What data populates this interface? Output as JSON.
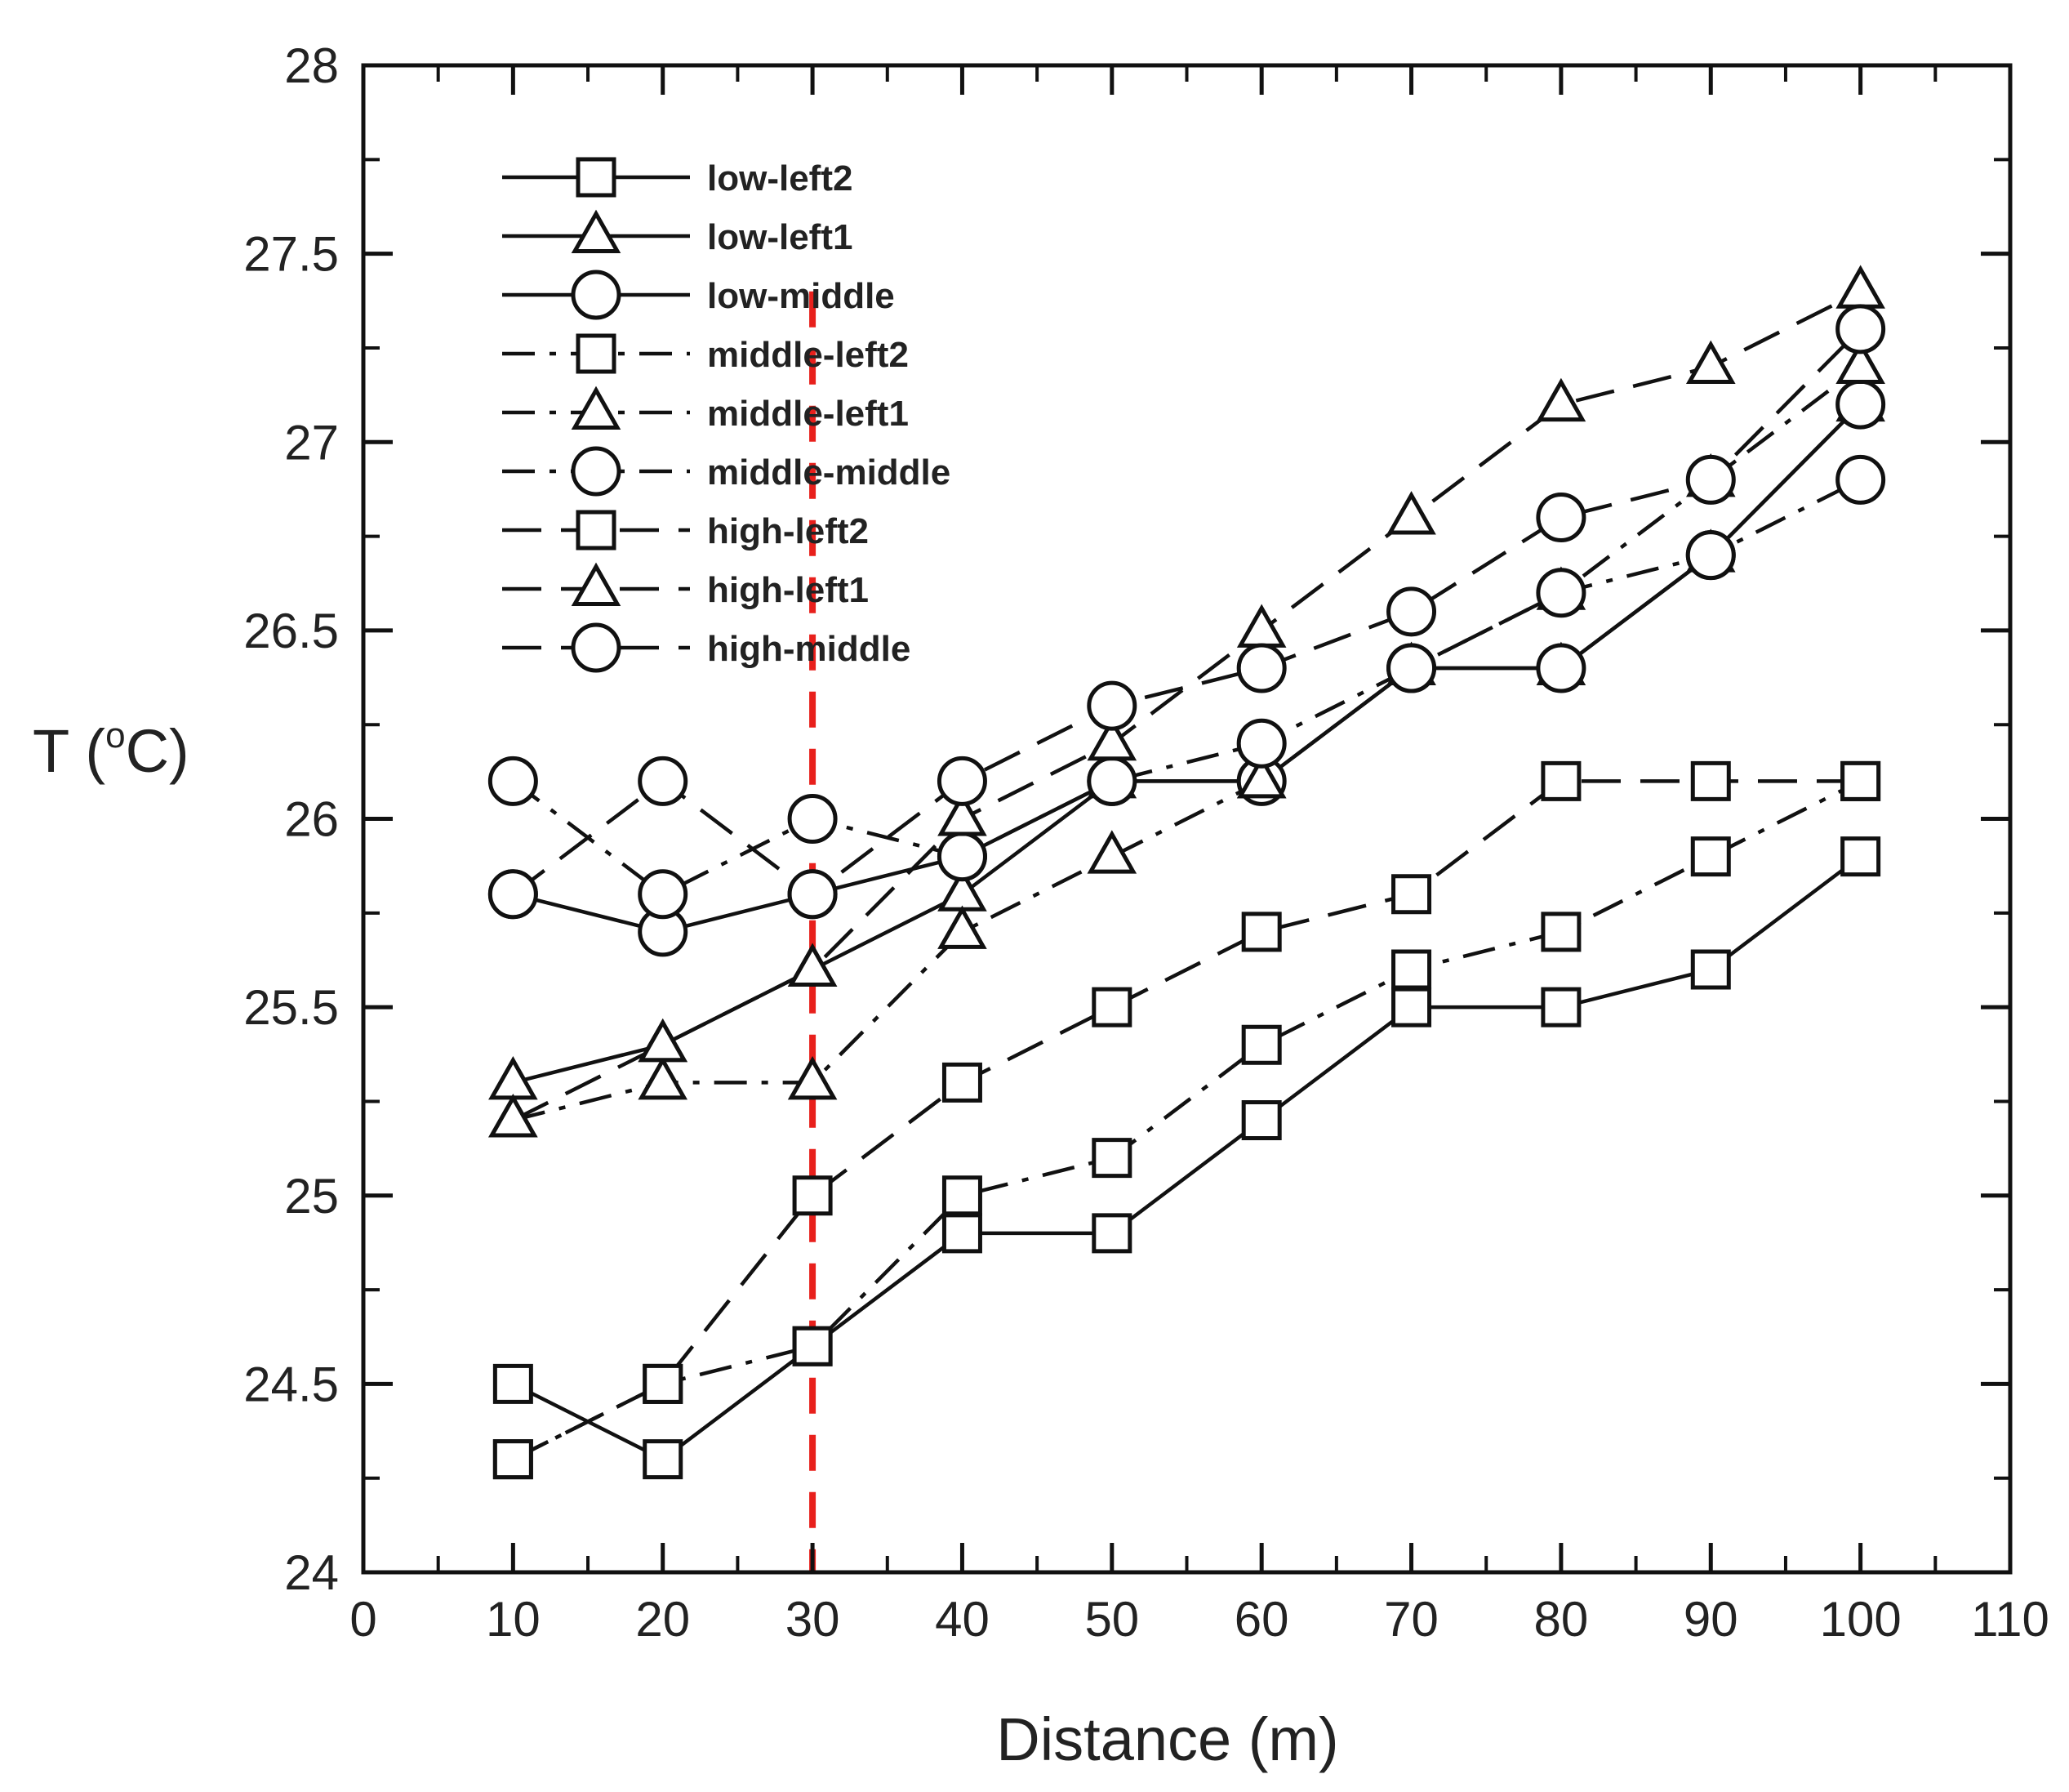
{
  "chart_data": {
    "type": "line",
    "title": "",
    "xlabel": "Distance (m)",
    "ylabel_parts": {
      "main": "T (",
      "superscript": "o",
      "tail": "C)"
    },
    "xlim": [
      0,
      110
    ],
    "ylim": [
      24,
      28
    ],
    "x_ticks": [
      "0",
      "10",
      "20",
      "30",
      "40",
      "50",
      "60",
      "70",
      "80",
      "90",
      "100",
      "110"
    ],
    "y_ticks": [
      "24",
      "24.5",
      "25",
      "25.5",
      "26",
      "26.5",
      "27",
      "27.5",
      "28"
    ],
    "x": [
      10,
      20,
      30,
      40,
      50,
      60,
      70,
      80,
      90,
      100
    ],
    "reference_line": {
      "x": 30,
      "color": "#e8201c",
      "style": "dashed"
    },
    "legend_position": "top-left",
    "series": [
      {
        "name": "low-left2",
        "marker": "square",
        "line": "solid",
        "values": [
          24.5,
          24.3,
          24.6,
          24.9,
          24.9,
          25.2,
          25.5,
          25.5,
          25.6,
          25.9
        ]
      },
      {
        "name": "low-left1",
        "marker": "triangle",
        "line": "solid",
        "values": [
          25.3,
          25.4,
          25.6,
          25.8,
          26.1,
          26.1,
          26.4,
          26.4,
          26.7,
          27.1
        ]
      },
      {
        "name": "low-middle",
        "marker": "circle",
        "line": "solid",
        "values": [
          25.8,
          25.7,
          25.8,
          25.9,
          26.1,
          26.1,
          26.4,
          26.4,
          26.7,
          27.1
        ]
      },
      {
        "name": "middle-left2",
        "marker": "square",
        "line": "dashdot",
        "values": [
          24.3,
          24.5,
          24.6,
          25.0,
          25.1,
          25.4,
          25.6,
          25.7,
          25.9,
          26.1
        ]
      },
      {
        "name": "middle-left1",
        "marker": "triangle",
        "line": "dashdot",
        "values": [
          25.2,
          25.3,
          25.3,
          25.7,
          25.9,
          26.1,
          26.4,
          26.6,
          26.9,
          27.2
        ]
      },
      {
        "name": "middle-middle",
        "marker": "circle",
        "line": "dashdot",
        "values": [
          26.1,
          25.8,
          26.0,
          25.9,
          26.1,
          26.2,
          26.4,
          26.6,
          26.7,
          26.9
        ]
      },
      {
        "name": "high-left2",
        "marker": "square",
        "line": "dashed",
        "values": [
          24.3,
          24.5,
          25.0,
          25.3,
          25.5,
          25.7,
          25.8,
          26.1,
          26.1,
          26.1
        ]
      },
      {
        "name": "high-left1",
        "marker": "triangle",
        "line": "dashed",
        "values": [
          25.2,
          25.4,
          25.6,
          26.0,
          26.2,
          26.5,
          26.8,
          27.1,
          27.2,
          27.4
        ]
      },
      {
        "name": "high-middle",
        "marker": "circle",
        "line": "dashed",
        "values": [
          25.8,
          26.1,
          25.8,
          26.1,
          26.3,
          26.4,
          26.55,
          26.8,
          26.9,
          27.3
        ]
      }
    ]
  }
}
